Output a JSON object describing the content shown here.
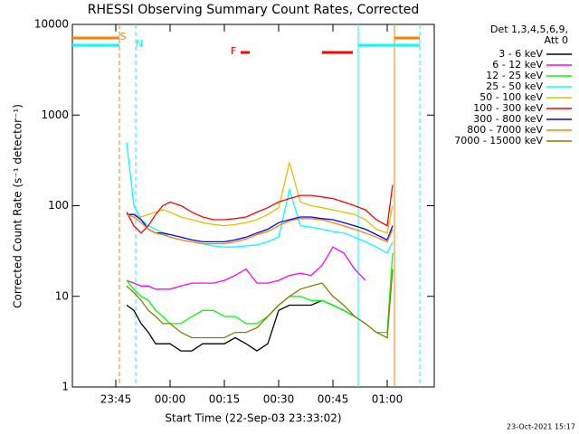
{
  "chart_data": {
    "type": "line",
    "title": "RHESSI Observing Summary Count Rates, Corrected",
    "xlabel": "Start Time (22-Sep-03 23:33:02)",
    "ylabel": "Corrected Count Rate (s⁻¹ detector⁻¹)",
    "legend_title": [
      "Det 1,3,4,5,6,9,",
      "Att 0"
    ],
    "footer": "23-Oct-2021 15:17",
    "log_y": true,
    "xlim": [
      -27,
      73
    ],
    "ylim": [
      1,
      10000
    ],
    "xticks": [
      {
        "value": -15,
        "label": "23:45"
      },
      {
        "value": 0,
        "label": "00:00"
      },
      {
        "value": 15,
        "label": "00:15"
      },
      {
        "value": 30,
        "label": "00:30"
      },
      {
        "value": 45,
        "label": "00:45"
      },
      {
        "value": 60,
        "label": "01:00"
      }
    ],
    "yticks": [
      1,
      10,
      100,
      1000,
      10000
    ],
    "x": [
      -12,
      -10,
      -8,
      -6,
      -4,
      -2,
      0,
      3,
      6,
      9,
      12,
      15,
      18,
      21,
      24,
      27,
      30,
      33,
      36,
      39,
      42,
      45,
      48,
      51,
      54,
      57,
      60,
      61.5
    ],
    "series": [
      {
        "name": "3 - 6 keV",
        "color": "#000000",
        "values": [
          8,
          7,
          5,
          4,
          3,
          3,
          3,
          2.5,
          2.5,
          3,
          3,
          3,
          3.5,
          3,
          2.5,
          3,
          7,
          8,
          8,
          8,
          9,
          8,
          7,
          6,
          null,
          null,
          null,
          null
        ]
      },
      {
        "name": "6 - 12 keV",
        "color": "#ff00ff",
        "values": [
          15,
          14,
          13,
          13,
          12,
          12,
          12,
          13,
          14,
          14,
          14,
          15,
          17,
          20,
          14,
          14,
          15,
          17,
          18,
          17,
          22,
          35,
          30,
          20,
          15,
          null,
          null,
          null
        ]
      },
      {
        "name": "12 - 25 keV",
        "color": "#00ff00",
        "values": [
          15,
          12,
          10,
          9,
          7,
          6,
          5,
          5,
          6,
          7,
          7,
          6,
          6,
          5,
          5,
          6,
          8,
          10,
          10,
          9,
          9,
          8,
          7,
          6,
          5,
          4,
          4,
          30
        ]
      },
      {
        "name": "25 - 50 keV",
        "color": "#00ffff",
        "values": [
          500,
          100,
          70,
          60,
          55,
          50,
          45,
          42,
          40,
          38,
          36,
          35,
          35,
          36,
          37,
          40,
          45,
          150,
          60,
          58,
          55,
          52,
          50,
          45,
          40,
          35,
          30,
          40
        ]
      },
      {
        "name": "50 - 100 keV",
        "color": "#e0c000",
        "values": [
          80,
          80,
          75,
          80,
          85,
          90,
          85,
          75,
          70,
          65,
          62,
          60,
          62,
          65,
          70,
          80,
          95,
          300,
          110,
          100,
          95,
          90,
          85,
          80,
          70,
          55,
          50,
          100
        ]
      },
      {
        "name": "100 - 300 keV",
        "color": "#ff0000",
        "values": [
          85,
          60,
          50,
          60,
          80,
          100,
          110,
          100,
          85,
          75,
          70,
          70,
          72,
          75,
          85,
          95,
          110,
          120,
          130,
          130,
          125,
          120,
          110,
          100,
          90,
          70,
          60,
          170
        ]
      },
      {
        "name": "300 - 800 keV",
        "color": "#0000ff",
        "values": [
          80,
          80,
          70,
          55,
          50,
          50,
          48,
          45,
          42,
          40,
          40,
          40,
          42,
          45,
          50,
          55,
          65,
          70,
          75,
          75,
          72,
          70,
          65,
          60,
          55,
          48,
          42,
          60
        ]
      },
      {
        "name": "800 - 7000 keV",
        "color": "#ff8000",
        "values": [
          80,
          75,
          65,
          55,
          50,
          48,
          45,
          42,
          40,
          38,
          38,
          38,
          40,
          43,
          48,
          52,
          60,
          68,
          72,
          72,
          70,
          65,
          60,
          55,
          50,
          45,
          40,
          55
        ]
      },
      {
        "name": "7000 - 15000 keV",
        "color": "#808000",
        "values": [
          13,
          11,
          9,
          7,
          6,
          5,
          5,
          4,
          3.5,
          3.5,
          3.5,
          3.5,
          4,
          4,
          4.5,
          6,
          8,
          10,
          12,
          13,
          14,
          10,
          8,
          6,
          5,
          4,
          3.5,
          20
        ]
      }
    ],
    "vertical_lines": [
      {
        "x": -14,
        "color": "#ff8000",
        "dashed": true
      },
      {
        "x": -9.5,
        "color": "#00ffff",
        "dashed": true
      },
      {
        "x": 52,
        "color": "#00ffff",
        "dashed": false
      },
      {
        "x": 62,
        "color": "#ff8000",
        "dashed": false
      },
      {
        "x": 69,
        "color": "#00ffff",
        "dashed": true
      }
    ],
    "flag_bars": [
      {
        "label": "S",
        "label_x": -13,
        "color": "#ff8000",
        "intervals": [
          [
            -27,
            -14
          ],
          [
            62,
            69
          ]
        ]
      },
      {
        "label": "N",
        "label_x": -8.5,
        "color": "#00ffff",
        "intervals": [
          [
            -27,
            -14
          ],
          [
            52,
            69
          ]
        ]
      },
      {
        "label": "F",
        "label_x": 17.5,
        "color": "#ff0000",
        "intervals": [
          [
            19.5,
            22
          ],
          [
            42,
            50.5
          ]
        ]
      }
    ]
  }
}
